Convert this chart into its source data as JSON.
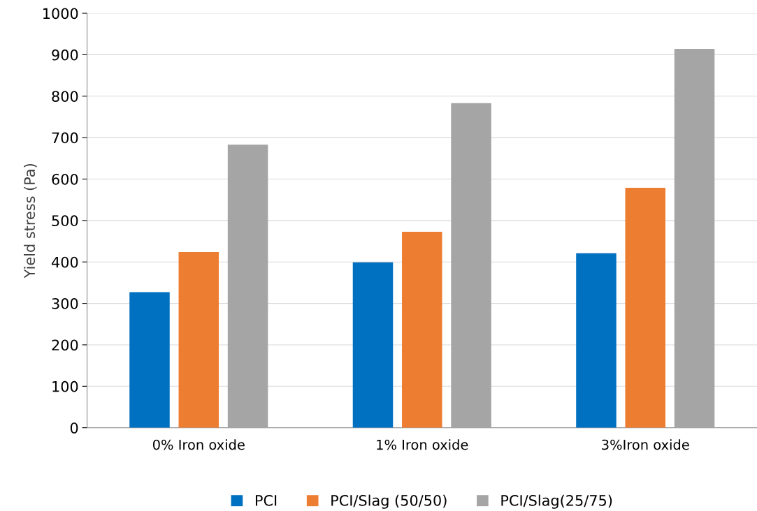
{
  "chart_data": {
    "type": "bar",
    "ylabel": "Yield stress (Pa)",
    "categories": [
      "0% Iron oxide",
      "1% Iron oxide",
      "3%Iron oxide"
    ],
    "series": [
      {
        "name": "PCI",
        "color": "#0070c0",
        "values": [
          327,
          399,
          421
        ]
      },
      {
        "name": "PCI/Slag (50/50)",
        "color": "#ed7d31",
        "values": [
          424,
          473,
          579
        ]
      },
      {
        "name": "PCI/Slag(25/75)",
        "color": "#a5a5a5",
        "values": [
          683,
          783,
          914
        ]
      }
    ],
    "ylim": [
      0,
      1000
    ],
    "yticks": [
      0,
      100,
      200,
      300,
      400,
      500,
      600,
      700,
      800,
      900,
      1000
    ],
    "grid": "y",
    "legend": "bottom"
  }
}
